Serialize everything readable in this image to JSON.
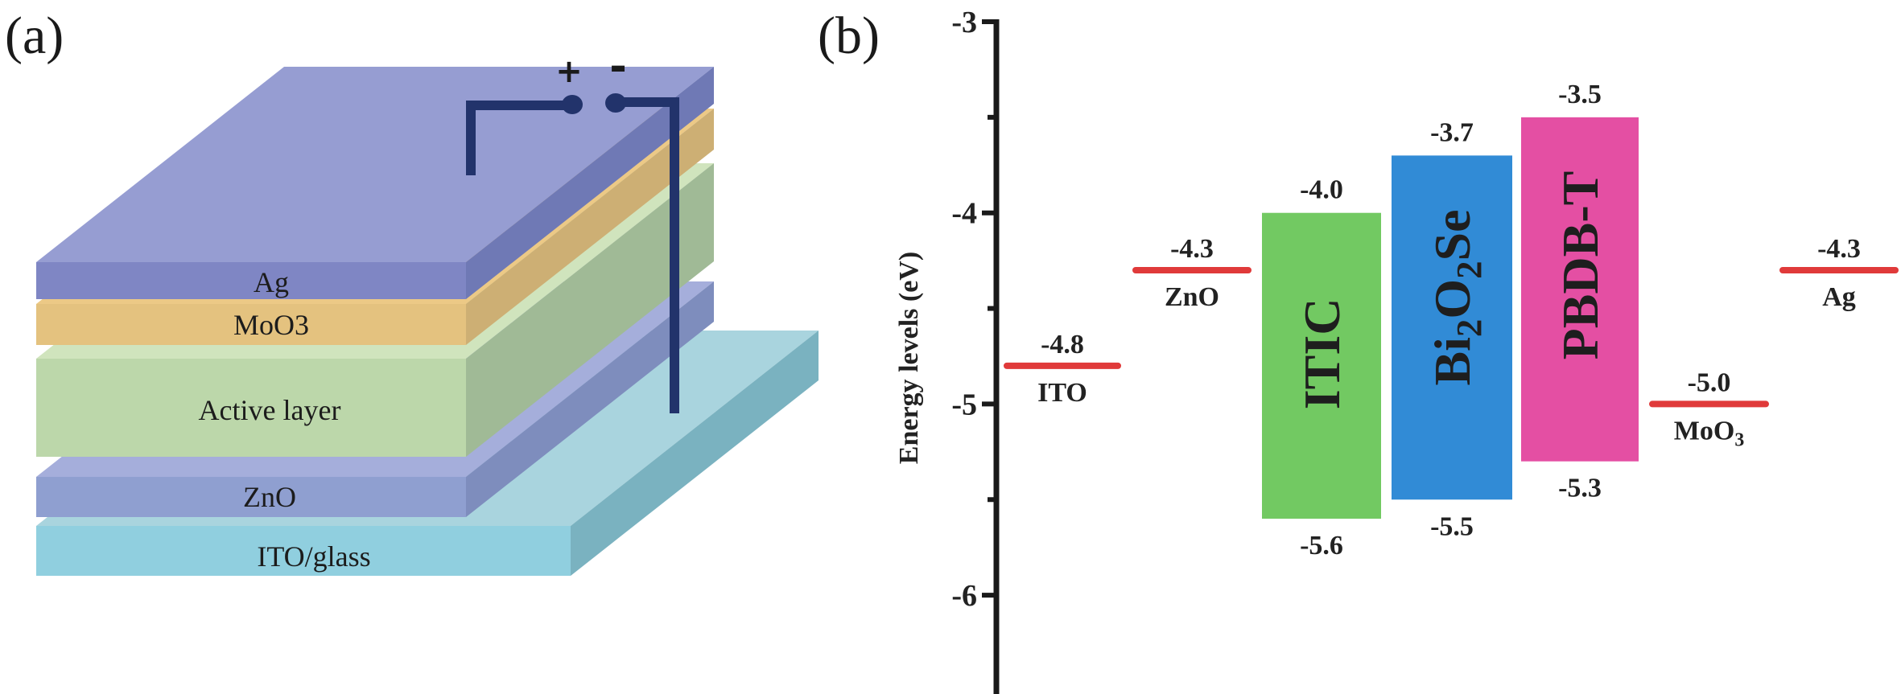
{
  "panel_a": {
    "label": "(a)",
    "layers": [
      {
        "name": "ITO/glass",
        "colors": {
          "top": "#a9d4de",
          "front": "#90cfdf",
          "side": "#7ab2c0"
        }
      },
      {
        "name": "ZnO",
        "colors": {
          "top": "#a5aedb",
          "front": "#8f9fd0",
          "side": "#7e8dbd"
        }
      },
      {
        "name": "Active layer",
        "colors": {
          "top": "#d0e4bd",
          "front": "#bcd7aa",
          "side": "#a0ba96"
        }
      },
      {
        "name": "MoO3",
        "colors": {
          "top": "#ecc986",
          "front": "#e4c27f",
          "side": "#cdaf74"
        }
      },
      {
        "name": "Ag",
        "colors": {
          "top": "#969dd2",
          "front": "#7f86c4",
          "side": "#6f79b5"
        }
      }
    ],
    "circuit": {
      "positive": "+",
      "negative": "-",
      "wire_color": "#22336b"
    }
  },
  "panel_b": {
    "label": "(b)"
  },
  "chart_data": {
    "type": "energy-level",
    "ylabel": "Energy levels (eV)",
    "ylim": [
      -6.5,
      -3
    ],
    "yticks": [
      -3,
      -4,
      -5,
      -6
    ],
    "ytick_labels": [
      "-3",
      "-4",
      "-5",
      "-6"
    ],
    "minor_ticks": [
      -3.5,
      -4.5,
      -5.5
    ],
    "levels": [
      {
        "name": "ITO",
        "kind": "line",
        "value": -4.8,
        "value_label": "-4.8",
        "color": "#e03a3a"
      },
      {
        "name": "ZnO",
        "kind": "line",
        "value": -4.3,
        "value_label": "-4.3",
        "color": "#e03a3a"
      },
      {
        "name": "ITIC",
        "kind": "band",
        "lumo": -4.0,
        "homo": -5.6,
        "lumo_label": "-4.0",
        "homo_label": "-5.6",
        "color": "#72c962"
      },
      {
        "name": "Bi2O2Se",
        "kind": "band",
        "lumo": -3.7,
        "homo": -5.5,
        "lumo_label": "-3.7",
        "homo_label": "-5.5",
        "color": "#318bd6"
      },
      {
        "name": "PBDB-T",
        "kind": "band",
        "lumo": -3.5,
        "homo": -5.3,
        "lumo_label": "-3.5",
        "homo_label": "-5.3",
        "color": "#e44fa3"
      },
      {
        "name": "MoO3",
        "kind": "line",
        "value": -5.0,
        "value_label": "-5.0",
        "color": "#e03a3a"
      },
      {
        "name": "Ag",
        "kind": "line",
        "value": -4.3,
        "value_label": "-4.3",
        "color": "#e03a3a"
      }
    ]
  }
}
